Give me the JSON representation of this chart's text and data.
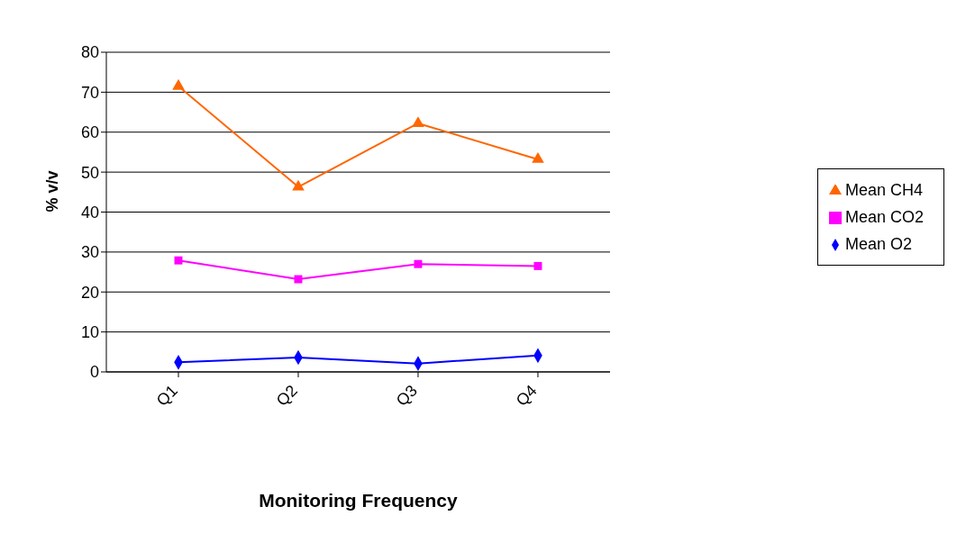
{
  "chart_data": {
    "type": "line",
    "xlabel": "Monitoring Frequency",
    "ylabel": "% v/v",
    "categories": [
      "Q1",
      "Q2",
      "Q3",
      "Q4"
    ],
    "series": [
      {
        "name": "Mean CH4",
        "color": "#ff6600",
        "marker": "triangle",
        "values": [
          71.5,
          46.3,
          62.2,
          53.2
        ]
      },
      {
        "name": "Mean CO2",
        "color": "#ff00ff",
        "marker": "square",
        "values": [
          27.9,
          23.2,
          27.0,
          26.5
        ]
      },
      {
        "name": "Mean O2",
        "color": "#0000ff",
        "marker": "diamond",
        "values": [
          2.4,
          3.6,
          2.1,
          4.1
        ]
      }
    ],
    "ylim": [
      0,
      80
    ],
    "yticks": [
      0,
      10,
      20,
      30,
      40,
      50,
      60,
      70,
      80
    ],
    "grid": "y",
    "legend": "right",
    "line_style": "solid"
  }
}
